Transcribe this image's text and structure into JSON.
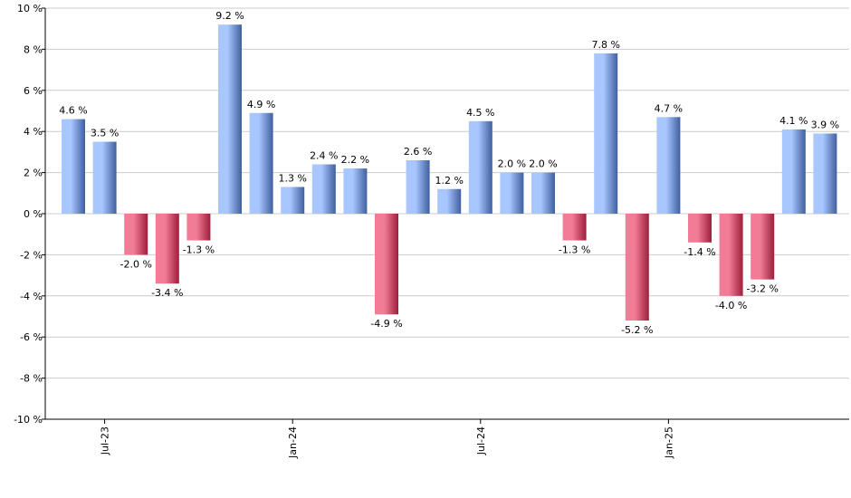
{
  "chart_data": {
    "type": "bar",
    "title": "",
    "xlabel": "",
    "ylabel": "",
    "ylim": [
      -10,
      10
    ],
    "y_ticks": [
      10,
      8,
      6,
      4,
      2,
      0,
      -2,
      -4,
      -6,
      -8,
      -10
    ],
    "y_tick_suffix": " %",
    "grid": true,
    "values": [
      4.6,
      3.5,
      -2.0,
      -3.4,
      -1.3,
      9.2,
      4.9,
      1.3,
      2.4,
      2.2,
      -4.9,
      2.6,
      1.2,
      4.5,
      2.0,
      2.0,
      -1.3,
      7.8,
      -5.2,
      4.7,
      -1.4,
      -4.0,
      -3.2,
      4.1,
      3.9
    ],
    "data_labels": [
      "4.6 %",
      "3.5 %",
      "-2.0 %",
      "-3.4 %",
      "-1.3 %",
      "9.2 %",
      "4.9 %",
      "1.3 %",
      "2.4 %",
      "2.2 %",
      "-4.9 %",
      "2.6 %",
      "1.2 %",
      "4.5 %",
      "2.0 %",
      "2.0 %",
      "-1.3 %",
      "7.8 %",
      "-5.2 %",
      "4.7 %",
      "-1.4 %",
      "-4.0 %",
      "-3.2 %",
      "4.1 %",
      "3.9 %"
    ],
    "x_tick_labels": [
      {
        "label": "Jul-23",
        "bar_index": 1
      },
      {
        "label": "Jan-24",
        "bar_index": 7
      },
      {
        "label": "Jul-24",
        "bar_index": 13
      },
      {
        "label": "Jan-25",
        "bar_index": 19
      }
    ],
    "colors": {
      "positive_light": "#a8c6ff",
      "positive_dark": "#3f5f9e",
      "negative_light": "#f27c96",
      "negative_dark": "#9e1f3b",
      "grid": "#cccccc",
      "axis": "#000000"
    }
  }
}
